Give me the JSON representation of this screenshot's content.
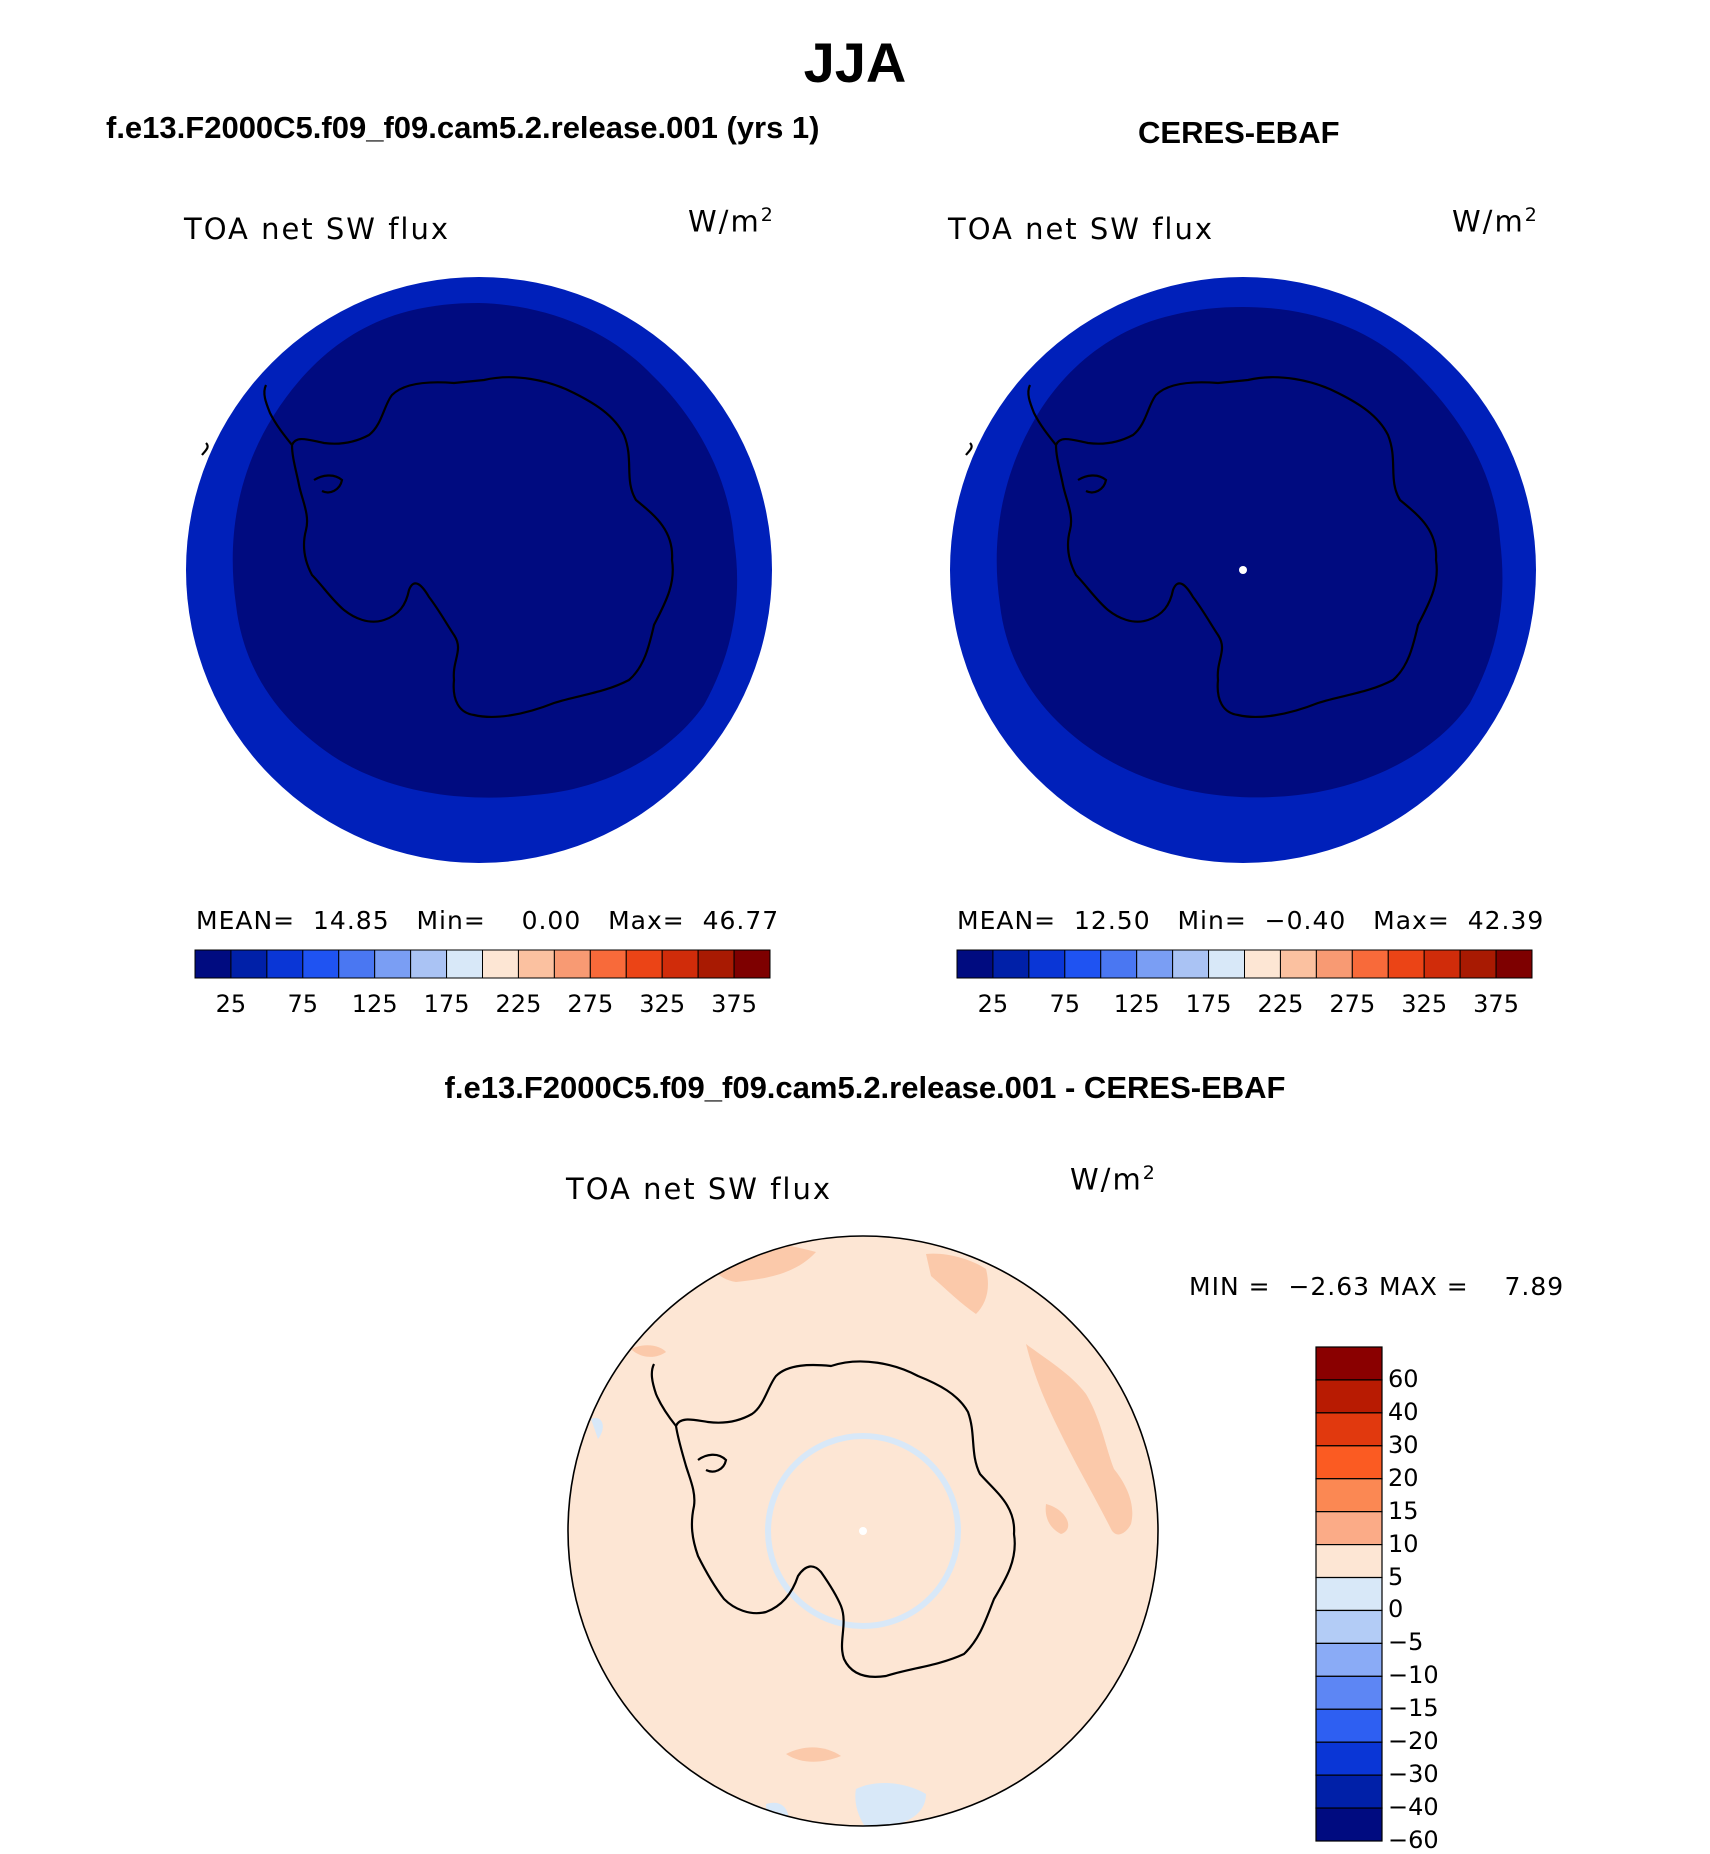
{
  "season": "JJA",
  "panels": [
    {
      "case_title": "f.e13.F2000C5.f09_f09.cam5.2.release.001 (yrs 1)",
      "variable_label": "TOA net SW flux",
      "units": "W/m",
      "units_exp": "2",
      "stats": {
        "mean_label": "MEAN=",
        "mean": "14.85",
        "min_label": "Min=",
        "min": "0.00",
        "max_label": "Max=",
        "max": "46.77"
      }
    },
    {
      "case_title": "CERES-EBAF",
      "variable_label": "TOA net SW flux",
      "units": "W/m",
      "units_exp": "2",
      "stats": {
        "mean_label": "MEAN=",
        "mean": "12.50",
        "min_label": "Min=",
        "min": "−0.40",
        "max_label": "Max=",
        "max": "42.39"
      }
    }
  ],
  "abs_colorbar": {
    "colors": [
      "#000b80",
      "#0020a8",
      "#0a36d6",
      "#1f53f2",
      "#4a77f2",
      "#7a9ef4",
      "#aac3f4",
      "#d8e8f8",
      "#fde6d4",
      "#fbc1a0",
      "#f89a73",
      "#f86a3a",
      "#eb4416",
      "#d02c0a",
      "#a81a02",
      "#7e0000"
    ],
    "tick_labels": [
      "25",
      "75",
      "125",
      "175",
      "225",
      "275",
      "325",
      "375"
    ]
  },
  "diff_panel": {
    "title": "f.e13.F2000C5.f09_f09.cam5.2.release.001 - CERES-EBAF",
    "variable_label": "TOA net SW flux",
    "units": "W/m",
    "units_exp": "2",
    "min_label": "MIN =",
    "min": "−2.63",
    "max_label": "MAX =",
    "max": "7.89"
  },
  "diff_colorbar": {
    "colors_top_to_bottom": [
      "#8a0000",
      "#b81b02",
      "#e1390e",
      "#fb5b22",
      "#fb8853",
      "#fbab87",
      "#fde6d4",
      "#d8e8f8",
      "#b3ccf6",
      "#8aabf6",
      "#5d86f4",
      "#2e5ff2",
      "#0a36d6",
      "#0020a8",
      "#000b80"
    ],
    "tick_labels": [
      "60",
      "40",
      "30",
      "20",
      "15",
      "10",
      "5",
      "0",
      "−5",
      "−10",
      "−15",
      "−20",
      "−30",
      "−40",
      "−60"
    ]
  },
  "map_colors": {
    "panel_inner": "#000b80",
    "panel_ring": "#0020ba",
    "diff_background": "#fde6d4",
    "diff_positive_patch": "#fbc9aa",
    "diff_negative_patch": "#d8e8f8"
  }
}
